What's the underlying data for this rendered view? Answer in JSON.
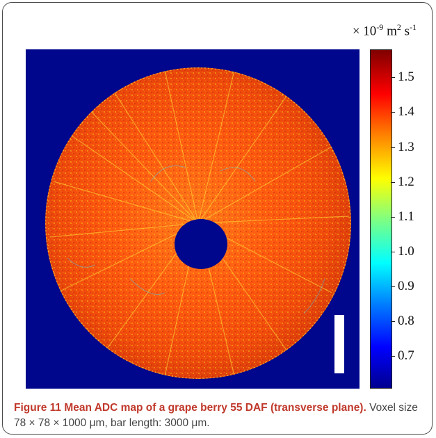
{
  "colorbar": {
    "units_prefix": "× 10",
    "units_exp1": "-9",
    "units_mid": " m",
    "units_exp2": "2",
    "units_mid2": " s",
    "units_exp3": "-1",
    "ticks": [
      "1.5",
      "1.4",
      "1.3",
      "1.2",
      "1.1",
      "1.0",
      "0.9",
      "0.8",
      "0.7"
    ],
    "colors": {
      "low": "#00008f",
      "mid": "#ffff00",
      "high": "#800000"
    }
  },
  "image": {
    "background_color": "#00078c",
    "tissue_color": "#ff5a10"
  },
  "caption": {
    "label": "Figure 11 Mean ADC map of a grape berry 55 DAF (transverse plane).",
    "text": " Voxel size 78 × 78 × 1000 μm, bar length: 3000 μm."
  }
}
